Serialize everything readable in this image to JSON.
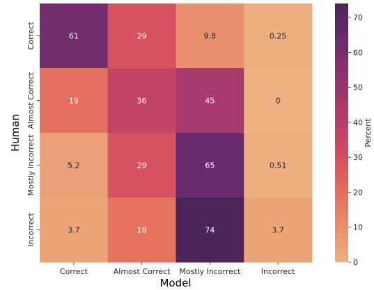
{
  "chart_data": {
    "type": "heatmap",
    "title": "",
    "xlabel": "Model",
    "ylabel": "Human",
    "x_categories": [
      "Correct",
      "Almost Correct",
      "Mostly Incorrect",
      "Incorrect"
    ],
    "y_categories": [
      "Correct",
      "Almost Correct",
      "Mostly Incorrect",
      "Incorrect"
    ],
    "values": [
      [
        61,
        29,
        9.8,
        0.25
      ],
      [
        19,
        36,
        45,
        0
      ],
      [
        5.2,
        29,
        65,
        0.51
      ],
      [
        3.7,
        18,
        74,
        3.7
      ]
    ],
    "cell_labels": [
      [
        "61",
        "29",
        "9.8",
        "0.25"
      ],
      [
        "19",
        "36",
        "45",
        "0"
      ],
      [
        "5.2",
        "29",
        "65",
        "0.51"
      ],
      [
        "3.7",
        "18",
        "74",
        "3.7"
      ]
    ],
    "colorbar": {
      "label": "Percent",
      "range": [
        0,
        74
      ],
      "ticks": [
        0,
        10,
        20,
        30,
        40,
        50,
        60,
        70
      ],
      "tick_labels": [
        "0",
        "10",
        "20",
        "30",
        "40",
        "50",
        "60",
        "70"
      ],
      "colormap": "flare",
      "colors": [
        "#edb081",
        "#e98d6b",
        "#e3685c",
        "#d14a61",
        "#b13c6c",
        "#8f3371",
        "#6c2b6d",
        "#4a2559"
      ]
    },
    "grid": false,
    "legend": "colorbar-right"
  }
}
